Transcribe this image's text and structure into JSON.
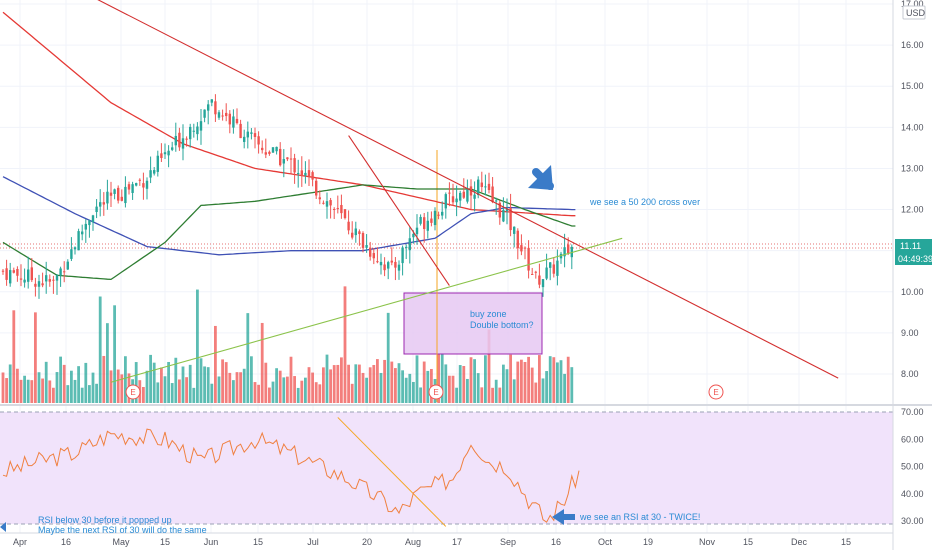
{
  "chart_data": {
    "type": "candlestick",
    "currency": "USD",
    "price_axis": {
      "range": [
        7.5,
        17.0
      ],
      "ticks": [
        "17.00",
        "16.00",
        "15.00",
        "14.00",
        "13.00",
        "12.00",
        "11.00",
        "10.00",
        "9.00",
        "8.00"
      ],
      "last_price": "11.11",
      "countdown": "04:49:39"
    },
    "rsi_axis": {
      "range": [
        28,
        72
      ],
      "ticks": [
        "70.00",
        "60.00",
        "50.00",
        "40.00",
        "30.00"
      ],
      "band": [
        30,
        70
      ]
    },
    "x_labels": [
      "Apr",
      "16",
      "May",
      "15",
      "Jun",
      "15",
      "Jul",
      "20",
      "Aug",
      "17",
      "Sep",
      "16",
      "Oct",
      "19",
      "Nov",
      "15",
      "Dec",
      "15"
    ],
    "earnings_markers": [
      "E",
      "E",
      "E"
    ],
    "series": [
      {
        "name": "price",
        "color_up": "#26a69a",
        "color_down": "#ef5350",
        "key_points": [
          [
            0,
            10.5
          ],
          [
            14,
            10.2
          ],
          [
            25,
            12.0
          ],
          [
            40,
            12.8
          ],
          [
            58,
            14.6
          ],
          [
            70,
            13.6
          ],
          [
            82,
            13.0
          ],
          [
            100,
            11.2
          ],
          [
            108,
            10.5
          ],
          [
            115,
            11.6
          ],
          [
            125,
            12.3
          ],
          [
            132,
            12.6
          ],
          [
            140,
            11.8
          ],
          [
            148,
            10.3
          ],
          [
            152,
            10.5
          ],
          [
            158,
            11.1
          ]
        ]
      },
      {
        "name": "ma-200",
        "color": "#e53935",
        "key_points": [
          [
            0,
            16.8
          ],
          [
            30,
            14.6
          ],
          [
            50,
            13.6
          ],
          [
            70,
            13.0
          ],
          [
            100,
            12.6
          ],
          [
            130,
            12.0
          ],
          [
            158,
            11.85
          ]
        ]
      },
      {
        "name": "ma-100",
        "color": "#3f51b5",
        "key_points": [
          [
            0,
            12.8
          ],
          [
            20,
            11.9
          ],
          [
            40,
            11.1
          ],
          [
            60,
            10.9
          ],
          [
            80,
            11.0
          ],
          [
            100,
            11.0
          ],
          [
            120,
            11.3
          ],
          [
            130,
            11.9
          ],
          [
            140,
            12.05
          ],
          [
            158,
            12.0
          ]
        ]
      },
      {
        "name": "ma-50",
        "color": "#2e7d32",
        "key_points": [
          [
            0,
            11.2
          ],
          [
            15,
            10.4
          ],
          [
            30,
            10.3
          ],
          [
            45,
            11.2
          ],
          [
            55,
            12.1
          ],
          [
            70,
            12.2
          ],
          [
            85,
            12.4
          ],
          [
            100,
            12.6
          ],
          [
            115,
            12.5
          ],
          [
            130,
            12.5
          ],
          [
            145,
            12.0
          ],
          [
            158,
            11.6
          ]
        ]
      }
    ],
    "rsi": {
      "name": "RSI",
      "color": "#f08040",
      "key_points": [
        [
          0,
          48
        ],
        [
          10,
          52
        ],
        [
          20,
          55
        ],
        [
          30,
          62
        ],
        [
          45,
          60
        ],
        [
          55,
          52
        ],
        [
          70,
          60
        ],
        [
          80,
          55
        ],
        [
          95,
          46
        ],
        [
          105,
          38
        ],
        [
          110,
          33
        ],
        [
          115,
          40
        ],
        [
          125,
          46
        ],
        [
          130,
          60
        ],
        [
          135,
          52
        ],
        [
          140,
          50
        ],
        [
          146,
          38
        ],
        [
          151,
          30
        ],
        [
          156,
          38
        ],
        [
          160,
          48
        ]
      ]
    },
    "trendlines": [
      {
        "name": "long-downtrend",
        "color": "#d32f2f"
      },
      {
        "name": "steep-downtrend",
        "color": "#d32f2f"
      },
      {
        "name": "uptrend-support",
        "color": "#8bc34a"
      },
      {
        "name": "rsi-downtrend",
        "color": "#f5a623"
      }
    ]
  },
  "annotations": {
    "cross_note": "we see a 50 200 cross over",
    "buy_zone_line1": "buy zone",
    "buy_zone_line2": "Double bottom?",
    "rsi_note_line1": "RSI below 30 before it popped up",
    "rsi_note_line2": "Maybe the next RSI of 30 will do the same",
    "rsi_twice_note": "we see an RSI at 30 -  TWICE!"
  },
  "colors": {
    "up": "#26a69a",
    "down": "#ef5350",
    "last_price_badge": "#26a69a",
    "countdown_badge": "#26a69a",
    "buy_zone_fill": "#e6c8f2",
    "buy_zone_border": "#9c27b0",
    "rsi_band": "#f1e3fb",
    "arrow": "#3a7bc8",
    "note": "#2a8bd4"
  }
}
